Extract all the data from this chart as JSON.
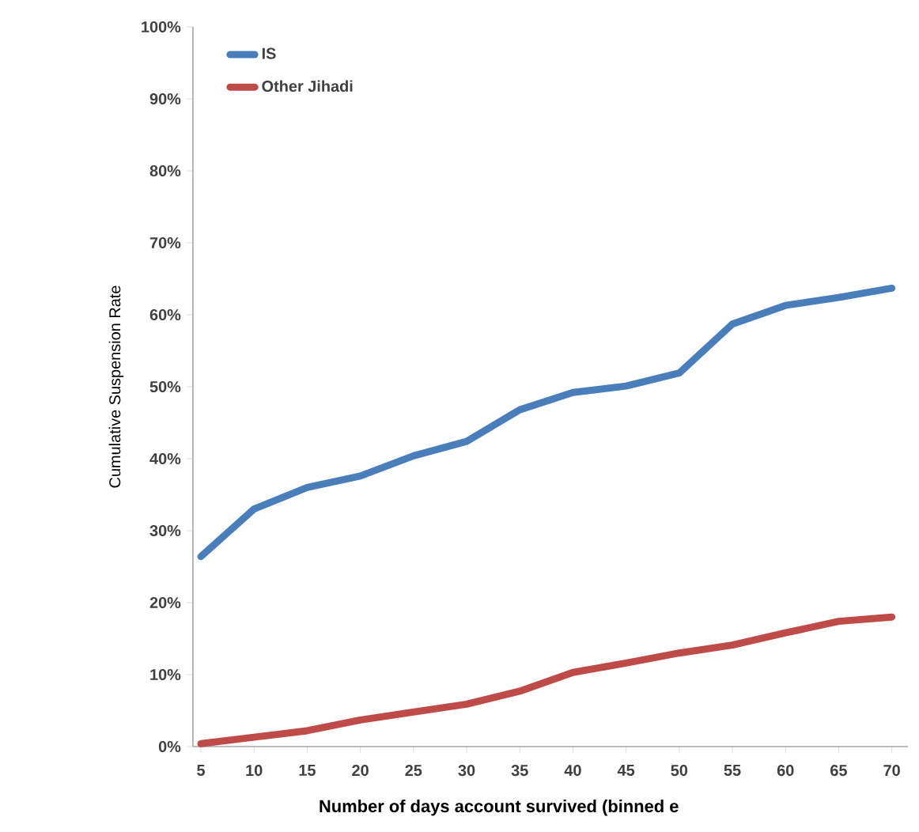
{
  "chart_data": {
    "type": "line",
    "xlabel": "Number of days account survived (binned e",
    "ylabel": "Cumulative Suspension Rate",
    "categories": [
      "5",
      "10",
      "15",
      "20",
      "25",
      "30",
      "35",
      "40",
      "45",
      "50",
      "55",
      "60",
      "65",
      "70"
    ],
    "series": [
      {
        "name": "IS",
        "color": "#4a7ebb",
        "values": [
          26.4,
          33,
          36,
          37.6,
          40.4,
          42.4,
          46.8,
          49.2,
          50.1,
          51.9,
          58.7,
          61.3,
          62.4,
          63.7
        ]
      },
      {
        "name": "Other Jihadi",
        "color": "#be4b48",
        "values": [
          0.4,
          1.3,
          2.2,
          3.7,
          4.8,
          5.9,
          7.7,
          10.3,
          11.6,
          13,
          14.1,
          15.8,
          17.4,
          18
        ]
      }
    ],
    "ylim": [
      0,
      100
    ],
    "yticks": [
      {
        "value": 0,
        "label": "0%"
      },
      {
        "value": 10,
        "label": "10%"
      },
      {
        "value": 20,
        "label": "20%"
      },
      {
        "value": 30,
        "label": "30%"
      },
      {
        "value": 40,
        "label": "40%"
      },
      {
        "value": 50,
        "label": "50%"
      },
      {
        "value": 60,
        "label": "60%"
      },
      {
        "value": 70,
        "label": "70%"
      },
      {
        "value": 80,
        "label": "80%"
      },
      {
        "value": 90,
        "label": "90%"
      },
      {
        "value": 100,
        "label": "100%"
      }
    ],
    "legend": "top left",
    "marker": "none",
    "line_style": "solid"
  }
}
